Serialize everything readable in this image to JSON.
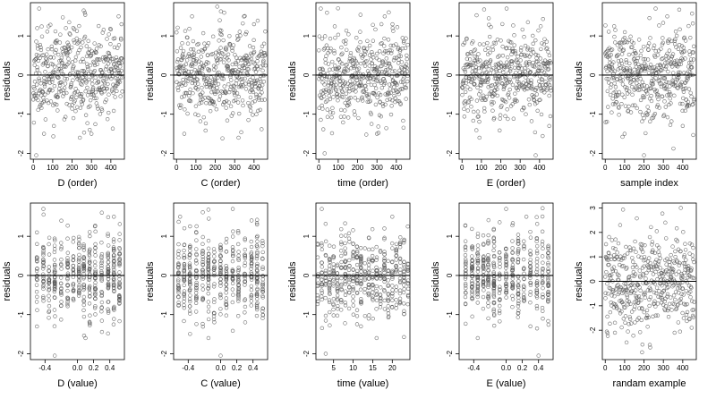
{
  "figure": {
    "ylabel": "residuals"
  },
  "chart_data": [
    {
      "type": "scatter",
      "xlabel": "D (order)",
      "ylabel": "residuals",
      "xlim": [
        -15,
        470
      ],
      "ylim": [
        -2.15,
        1.85
      ],
      "x_ticks": [
        0,
        100,
        200,
        300,
        400
      ],
      "x_tick_labels": [
        "0",
        "100",
        "200",
        "300",
        "400"
      ],
      "y_ticks": [
        -2,
        -1,
        0,
        1
      ],
      "y_tick_labels": [
        "-2",
        "-1",
        "0",
        "1"
      ],
      "zero_line": 0,
      "x_mode": "order",
      "n": 460,
      "seed": 11,
      "x": [
        15,
        55,
        30,
        240,
        300,
        260,
        440,
        455,
        20
      ],
      "y": [
        -2.05,
        -1.5,
        1.7,
        -1.6,
        -1.5,
        1.65,
        1.5,
        1.3,
        1.2
      ]
    },
    {
      "type": "scatter",
      "xlabel": "C (order)",
      "ylabel": "residuals",
      "xlim": [
        -15,
        470
      ],
      "ylim": [
        -2.15,
        1.85
      ],
      "x_ticks": [
        0,
        100,
        200,
        300,
        400
      ],
      "x_tick_labels": [
        "0",
        "100",
        "200",
        "300",
        "400"
      ],
      "y_ticks": [
        -2,
        -1,
        0,
        1
      ],
      "y_tick_labels": [
        "-2",
        "-1",
        "0",
        "1"
      ],
      "zero_line": 0,
      "x_mode": "order",
      "n": 460,
      "seed": 23,
      "x": [
        210,
        80,
        400,
        40,
        320
      ],
      "y": [
        1.75,
        1.5,
        1.3,
        -1.5,
        -1.6
      ]
    },
    {
      "type": "scatter",
      "xlabel": "time (order)",
      "ylabel": "residuals",
      "xlim": [
        -15,
        470
      ],
      "ylim": [
        -2.15,
        1.85
      ],
      "x_ticks": [
        0,
        100,
        200,
        300,
        400
      ],
      "x_tick_labels": [
        "0",
        "100",
        "200",
        "300",
        "400"
      ],
      "y_ticks": [
        -2,
        -1,
        0,
        1
      ],
      "y_tick_labels": [
        "-2",
        "-1",
        "0",
        "1"
      ],
      "zero_line": 0,
      "x_mode": "order",
      "n": 460,
      "seed": 37,
      "x": [
        10,
        30,
        340,
        380,
        300
      ],
      "y": [
        1.7,
        -2.0,
        1.5,
        1.3,
        -1.5
      ]
    },
    {
      "type": "scatter",
      "xlabel": "E (order)",
      "ylabel": "residuals",
      "xlim": [
        -15,
        470
      ],
      "ylim": [
        -2.15,
        1.85
      ],
      "x_ticks": [
        0,
        100,
        200,
        300,
        400
      ],
      "x_tick_labels": [
        "0",
        "100",
        "200",
        "300",
        "400"
      ],
      "y_ticks": [
        -2,
        -1,
        0,
        1
      ],
      "y_tick_labels": [
        "-2",
        "-1",
        "0",
        "1"
      ],
      "zero_line": 0,
      "x_mode": "order",
      "n": 460,
      "seed": 41,
      "x": [
        230,
        340,
        90,
        450,
        380
      ],
      "y": [
        1.7,
        1.35,
        -1.6,
        -1.3,
        -2.05
      ]
    },
    {
      "type": "scatter",
      "xlabel": "sample index",
      "ylabel": "residuals",
      "xlim": [
        -15,
        470
      ],
      "ylim": [
        -2.15,
        1.85
      ],
      "x_ticks": [
        0,
        100,
        200,
        300,
        400
      ],
      "x_tick_labels": [
        "0",
        "100",
        "200",
        "300",
        "400"
      ],
      "y_ticks": [
        -2,
        -1,
        0,
        1
      ],
      "y_tick_labels": [
        "-2",
        "-1",
        "0",
        "1"
      ],
      "zero_line": 0,
      "x_mode": "order",
      "n": 460,
      "seed": 53,
      "x": [
        200,
        260,
        320,
        100,
        400
      ],
      "y": [
        -2.05,
        1.7,
        1.5,
        -1.5,
        -1.3
      ]
    },
    {
      "type": "scatter",
      "xlabel": "D (value)",
      "ylabel": "residuals",
      "xlim": [
        -0.58,
        0.58
      ],
      "ylim": [
        -2.15,
        1.85
      ],
      "x_ticks": [
        -0.4,
        0.0,
        0.2,
        0.4
      ],
      "x_tick_labels": [
        "-0.4",
        "0.0",
        "0.2",
        "0.4"
      ],
      "y_ticks": [
        -2,
        -1,
        0,
        1
      ],
      "y_tick_labels": [
        "-2",
        "-1",
        "0",
        "1"
      ],
      "zero_line": 0,
      "x_mode": "levels",
      "levels": [
        -0.5,
        -0.42,
        -0.35,
        -0.28,
        -0.2,
        -0.12,
        -0.05,
        0.02,
        0.08,
        0.15,
        0.22,
        0.3,
        0.38,
        0.45,
        0.52
      ],
      "n": 460,
      "seed": 67,
      "x": [
        -0.42,
        -0.5,
        0.45,
        0.1,
        -0.28
      ],
      "y": [
        1.7,
        1.1,
        1.5,
        -1.6,
        -2.05
      ]
    },
    {
      "type": "scatter",
      "xlabel": "C (value)",
      "ylabel": "residuals",
      "xlim": [
        -0.58,
        0.58
      ],
      "ylim": [
        -2.15,
        1.85
      ],
      "x_ticks": [
        -0.4,
        0.0,
        0.2,
        0.4
      ],
      "x_tick_labels": [
        "-0.4",
        "0.0",
        "0.2",
        "0.4"
      ],
      "y_ticks": [
        -2,
        -1,
        0,
        1
      ],
      "y_tick_labels": [
        "-2",
        "-1",
        "0",
        "1"
      ],
      "zero_line": 0,
      "x_mode": "levels",
      "levels": [
        -0.52,
        -0.45,
        -0.38,
        -0.3,
        -0.22,
        -0.15,
        -0.08,
        0.0,
        0.07,
        0.15,
        0.22,
        0.3,
        0.38,
        0.45,
        0.52
      ],
      "n": 460,
      "seed": 79,
      "x": [
        -0.5,
        0.15,
        0.45,
        -0.15,
        0.0
      ],
      "y": [
        1.5,
        1.7,
        1.3,
        -1.6,
        -2.05
      ]
    },
    {
      "type": "scatter",
      "xlabel": "time (value)",
      "ylabel": "residuals",
      "xlim": [
        0.5,
        24.5
      ],
      "ylim": [
        -2.15,
        1.85
      ],
      "x_ticks": [
        5,
        10,
        15,
        20
      ],
      "x_tick_labels": [
        "5",
        "10",
        "15",
        "20"
      ],
      "y_ticks": [
        -2,
        -1,
        0,
        1
      ],
      "y_tick_labels": [
        "-2",
        "-1",
        "0",
        "1"
      ],
      "zero_line": 0,
      "x_mode": "levels",
      "levels": [
        1,
        2,
        3,
        4,
        5,
        6,
        7,
        8,
        9,
        10,
        11,
        12,
        13,
        14,
        15,
        16,
        17,
        18,
        19,
        20,
        21,
        22,
        23,
        24
      ],
      "n": 460,
      "seed": 83,
      "x": [
        2,
        20,
        3,
        16,
        12
      ],
      "y": [
        1.7,
        1.5,
        -2.0,
        -1.6,
        -1.3
      ]
    },
    {
      "type": "scatter",
      "xlabel": "E (value)",
      "ylabel": "residuals",
      "xlim": [
        -0.58,
        0.58
      ],
      "ylim": [
        -2.15,
        1.85
      ],
      "x_ticks": [
        -0.4,
        0.0,
        0.2,
        0.4
      ],
      "x_tick_labels": [
        "-0.4",
        "0.0",
        "0.2",
        "0.4"
      ],
      "y_ticks": [
        -2,
        -1,
        0,
        1
      ],
      "y_tick_labels": [
        "-2",
        "-1",
        "0",
        "1"
      ],
      "zero_line": 0,
      "x_mode": "levels",
      "levels": [
        -0.5,
        -0.42,
        -0.35,
        -0.28,
        -0.22,
        -0.15,
        -0.08,
        0.0,
        0.08,
        0.15,
        0.22,
        0.3,
        0.38,
        0.45,
        0.52
      ],
      "n": 460,
      "seed": 97,
      "x": [
        0.0,
        0.25,
        -0.35,
        0.4,
        0.3
      ],
      "y": [
        1.7,
        1.5,
        -1.6,
        -2.05,
        -1.3
      ]
    },
    {
      "type": "scatter",
      "xlabel": "randam example",
      "ylabel": "residuals",
      "xlim": [
        -15,
        470
      ],
      "ylim": [
        -3.2,
        3.2
      ],
      "x_ticks": [
        0,
        100,
        200,
        300,
        400
      ],
      "x_tick_labels": [
        "0",
        "100",
        "200",
        "300",
        "400"
      ],
      "y_ticks": [
        -2,
        -1,
        0,
        1,
        2,
        3
      ],
      "y_tick_labels": [
        "-2",
        "-1",
        "0",
        "1",
        "2",
        "3"
      ],
      "zero_line": 0,
      "x_mode": "order",
      "n": 460,
      "seed": 101,
      "spread": 1.0,
      "x": [
        390,
        310,
        230,
        110,
        50,
        190
      ],
      "y": [
        3.0,
        2.4,
        -2.6,
        -2.5,
        -2.1,
        -2.9
      ]
    }
  ]
}
